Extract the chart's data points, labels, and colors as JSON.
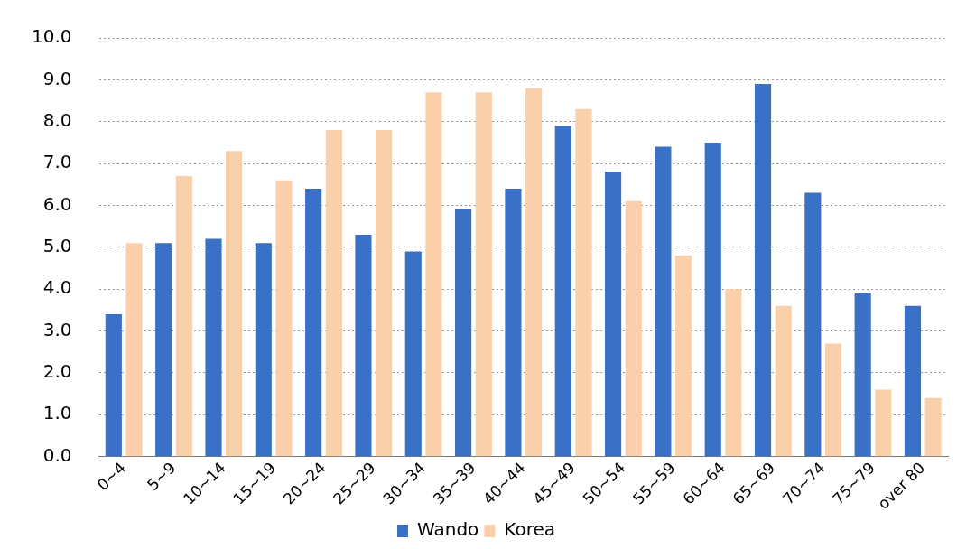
{
  "chart_data": {
    "type": "bar",
    "categories": [
      "0~4",
      "5~9",
      "10~14",
      "15~19",
      "20~24",
      "25~29",
      "30~34",
      "35~39",
      "40~44",
      "45~49",
      "50~54",
      "55~59",
      "60~64",
      "65~69",
      "70~74",
      "75~79",
      "over 80"
    ],
    "series": [
      {
        "name": "Wando",
        "color": "#3a70c6",
        "values": [
          3.4,
          5.1,
          5.2,
          5.1,
          6.4,
          5.3,
          4.9,
          5.9,
          6.4,
          7.9,
          6.8,
          7.4,
          7.5,
          8.9,
          6.3,
          3.9,
          3.6
        ]
      },
      {
        "name": "Korea",
        "color": "#f9d0aa",
        "values": [
          5.1,
          6.7,
          7.3,
          6.6,
          7.8,
          7.8,
          8.7,
          8.7,
          8.8,
          8.3,
          6.1,
          4.8,
          4.0,
          3.6,
          2.7,
          1.6,
          1.4
        ]
      }
    ],
    "ylim": [
      0,
      10
    ],
    "yticks": [
      {
        "value": 0,
        "label": "0.0"
      },
      {
        "value": 1,
        "label": "1.0"
      },
      {
        "value": 2,
        "label": "2.0"
      },
      {
        "value": 3,
        "label": "3.0"
      },
      {
        "value": 4,
        "label": "4.0"
      },
      {
        "value": 5,
        "label": "5.0"
      },
      {
        "value": 6,
        "label": "6.0"
      },
      {
        "value": 7,
        "label": "7.0"
      },
      {
        "value": 8,
        "label": "8.0"
      },
      {
        "value": 9,
        "label": "9.0"
      },
      {
        "value": 10,
        "label": "10.0"
      }
    ],
    "grid": "y",
    "legend": "bottom"
  }
}
